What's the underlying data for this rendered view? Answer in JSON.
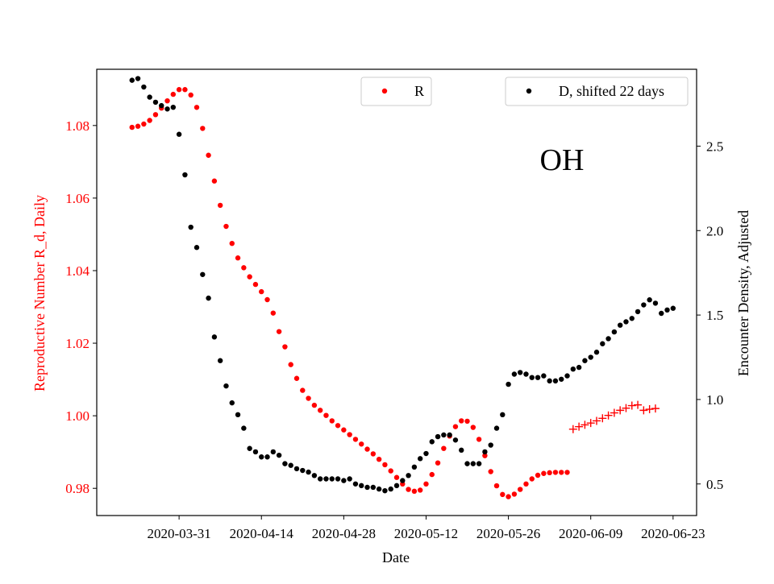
{
  "chart_data": {
    "type": "scatter",
    "title": "",
    "annotation": "OH",
    "xlabel": "Date",
    "ylabel_left": "Reproductive Number R_d, Daily",
    "ylabel_right": "Encounter Density, Adjusted",
    "x_ticks": [
      "2020-03-31",
      "2020-04-14",
      "2020-04-28",
      "2020-05-12",
      "2020-05-26",
      "2020-06-09",
      "2020-06-23"
    ],
    "y_left_ticks": [
      "0.98",
      "1.00",
      "1.02",
      "1.04",
      "1.06",
      "1.08"
    ],
    "y_right_ticks": [
      "0.5",
      "1.0",
      "1.5",
      "2.0",
      "2.5"
    ],
    "xlim": [
      "2020-03-17",
      "2020-06-27"
    ],
    "ylim_left": [
      0.9725,
      1.0955
    ],
    "ylim_right": [
      0.313,
      2.955
    ],
    "colors": {
      "R": "#ff0000",
      "D": "#000000",
      "axis": "#000000"
    },
    "grid": false,
    "legends": [
      {
        "label": "R",
        "position": "upper-center"
      },
      {
        "label": "D, shifted 22 days",
        "position": "upper-right"
      }
    ],
    "series": [
      {
        "name": "R",
        "axis": "left",
        "marker": "circle",
        "color": "#ff0000",
        "start_date": "2020-03-23",
        "values": [
          1.0795,
          1.0798,
          1.0804,
          1.0814,
          1.083,
          1.0848,
          1.0868,
          1.0886,
          1.0899,
          1.0899,
          1.0884,
          1.085,
          1.0792,
          1.0718,
          1.0647,
          1.058,
          1.0522,
          1.0475,
          1.0435,
          1.0408,
          1.0383,
          1.0362,
          1.0342,
          1.032,
          1.0283,
          1.0232,
          1.019,
          1.0141,
          1.0103,
          1.007,
          1.0048,
          1.0029,
          1.0015,
          1.0001,
          0.9986,
          0.9973,
          0.9961,
          0.9948,
          0.9935,
          0.9922,
          0.9908,
          0.9895,
          0.988,
          0.9865,
          0.9848,
          0.983,
          0.9812,
          0.9797,
          0.9792,
          0.9795,
          0.9812,
          0.9838,
          0.987,
          0.991,
          0.9944,
          0.997,
          0.9986,
          0.9985,
          0.9968,
          0.9935,
          0.989,
          0.9846,
          0.9807,
          0.9783,
          0.9777,
          0.9784,
          0.9797,
          0.9812,
          0.9826,
          0.9836,
          0.9841,
          0.9843,
          0.9844,
          0.9844,
          0.9844
        ]
      },
      {
        "name": "R",
        "axis": "left",
        "marker": "plus",
        "color": "#ff0000",
        "start_date": "2020-06-06",
        "values": [
          0.9963,
          0.997,
          0.9975,
          0.998,
          0.9986,
          0.9993,
          1.0001,
          1.0008,
          1.0015,
          1.0021,
          1.0028,
          1.003,
          1.0015,
          1.0018,
          1.002
        ]
      },
      {
        "name": "D, shifted 22 days",
        "axis": "right",
        "marker": "circle",
        "color": "#000000",
        "start_date": "2020-03-23",
        "values": [
          2.89,
          2.9,
          2.85,
          2.79,
          2.76,
          2.74,
          2.72,
          2.73,
          2.57,
          2.33,
          2.02,
          1.9,
          1.74,
          1.6,
          1.37,
          1.23,
          1.08,
          0.98,
          0.91,
          0.83,
          0.71,
          0.69,
          0.66,
          0.66,
          0.69,
          0.67,
          0.62,
          0.61,
          0.59,
          0.58,
          0.57,
          0.55,
          0.53,
          0.53,
          0.53,
          0.53,
          0.52,
          0.53,
          0.5,
          0.49,
          0.48,
          0.48,
          0.47,
          0.46,
          0.47,
          0.49,
          0.52,
          0.55,
          0.6,
          0.65,
          0.68,
          0.75,
          0.78,
          0.79,
          0.79,
          0.76,
          0.7,
          0.62,
          0.62,
          0.62,
          0.69,
          0.73,
          0.83,
          0.91,
          1.09,
          1.15,
          1.16,
          1.15,
          1.13,
          1.13,
          1.14,
          1.11,
          1.11,
          1.12,
          1.14,
          1.18,
          1.19,
          1.23,
          1.25,
          1.28,
          1.33,
          1.36,
          1.4,
          1.44,
          1.46,
          1.48,
          1.52,
          1.56,
          1.59,
          1.57,
          1.51,
          1.53,
          1.54
        ]
      }
    ]
  }
}
